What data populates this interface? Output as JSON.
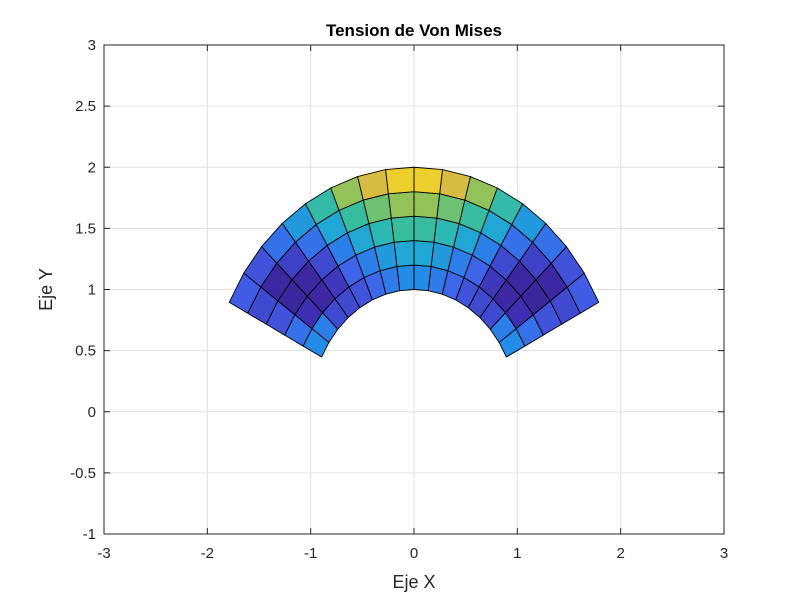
{
  "chart_data": {
    "type": "heatmap",
    "title": "Tension de Von Mises",
    "xlabel": "Eje X",
    "ylabel": "Eje Y",
    "xlim": [
      -3,
      3
    ],
    "ylim": [
      -1,
      3
    ],
    "xticks": [
      -3,
      -2,
      -1,
      0,
      1,
      2,
      3
    ],
    "yticks": [
      -1,
      -0.5,
      0,
      0.5,
      1,
      1.5,
      2,
      2.5,
      3
    ],
    "xtick_labels": [
      "-3",
      "-2",
      "-1",
      "0",
      "1",
      "2",
      "3"
    ],
    "ytick_labels": [
      "-1",
      "-0.5",
      "0",
      "0.5",
      "1",
      "1.5",
      "2",
      "2.5",
      "3"
    ],
    "grid": true,
    "colormap": "parula",
    "mesh": {
      "shape": "annular sector",
      "inner_radius": 1,
      "outer_radius": 2,
      "start_angle_deg": 26.6,
      "end_angle_deg": 153.4,
      "radial_divisions": 5,
      "angular_divisions": 16,
      "colormap_values_by_ring_inner_to_outer": [
        [
          0.38,
          0.34,
          0.2,
          0.2,
          0.22,
          0.27,
          0.33,
          0.38,
          0.38,
          0.33,
          0.27,
          0.22,
          0.2,
          0.2,
          0.34,
          0.38
        ],
        [
          0.3,
          0.14,
          0.1,
          0.16,
          0.26,
          0.34,
          0.42,
          0.46,
          0.46,
          0.42,
          0.34,
          0.26,
          0.16,
          0.1,
          0.14,
          0.3
        ],
        [
          0.22,
          0.08,
          0.1,
          0.2,
          0.34,
          0.46,
          0.55,
          0.6,
          0.6,
          0.55,
          0.46,
          0.34,
          0.2,
          0.1,
          0.08,
          0.22
        ],
        [
          0.2,
          0.1,
          0.18,
          0.3,
          0.46,
          0.6,
          0.7,
          0.76,
          0.76,
          0.7,
          0.6,
          0.46,
          0.3,
          0.18,
          0.1,
          0.2
        ],
        [
          0.24,
          0.22,
          0.3,
          0.42,
          0.58,
          0.76,
          0.86,
          0.92,
          0.92,
          0.86,
          0.76,
          0.58,
          0.42,
          0.3,
          0.22,
          0.24
        ]
      ]
    }
  }
}
